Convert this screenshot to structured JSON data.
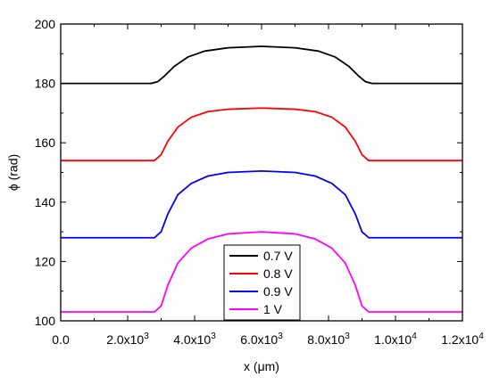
{
  "chart_data": {
    "type": "line",
    "title": "",
    "xlabel": "x (μm)",
    "ylabel": "ϕ (rad)",
    "xlim": [
      0,
      12000
    ],
    "ylim": [
      100,
      200
    ],
    "grid": false,
    "legend_position": "bottom-center",
    "x_ticks": [
      {
        "value": 0,
        "base": "0.0",
        "exp": ""
      },
      {
        "value": 2000,
        "base": "2.0x10",
        "exp": "3"
      },
      {
        "value": 4000,
        "base": "4.0x10",
        "exp": "3"
      },
      {
        "value": 6000,
        "base": "6.0x10",
        "exp": "3"
      },
      {
        "value": 8000,
        "base": "8.0x10",
        "exp": "3"
      },
      {
        "value": 10000,
        "base": "1.0x10",
        "exp": "4"
      },
      {
        "value": 12000,
        "base": "1.2x10",
        "exp": "4"
      }
    ],
    "y_ticks": [
      100,
      120,
      140,
      160,
      180,
      200
    ],
    "series": [
      {
        "name": "0.7 V",
        "color": "#000000",
        "x": [
          0,
          2700,
          2900,
          3100,
          3400,
          3800,
          4300,
          5000,
          6000,
          7000,
          7700,
          8200,
          8600,
          8900,
          9100,
          9300,
          12000
        ],
        "y": [
          180,
          180,
          180.6,
          182.5,
          185.8,
          188.9,
          190.9,
          192.0,
          192.5,
          192.0,
          190.9,
          188.9,
          185.8,
          182.5,
          180.6,
          180,
          180
        ]
      },
      {
        "name": "0.8 V",
        "color": "#ff0000",
        "x": [
          0,
          2800,
          3000,
          3200,
          3500,
          3900,
          4400,
          5000,
          6000,
          7000,
          7600,
          8100,
          8500,
          8800,
          9000,
          9200,
          12000
        ],
        "y": [
          154,
          154,
          156,
          160.5,
          165.3,
          168.6,
          170.5,
          171.3,
          171.7,
          171.3,
          170.5,
          168.6,
          165.3,
          160.5,
          156,
          154,
          154
        ]
      },
      {
        "name": "0.9 V",
        "color": "#0000ff",
        "x": [
          0,
          2800,
          3000,
          3200,
          3500,
          3900,
          4400,
          5000,
          6000,
          7000,
          7600,
          8100,
          8500,
          8800,
          9000,
          9200,
          12000
        ],
        "y": [
          128,
          128,
          130,
          136,
          142.5,
          146.3,
          148.8,
          150,
          150.5,
          150,
          148.8,
          146.3,
          142.5,
          136,
          130,
          128,
          128
        ]
      },
      {
        "name": "1 V",
        "color": "#ff00ff",
        "x": [
          0,
          2800,
          3000,
          3200,
          3500,
          3900,
          4400,
          5000,
          6000,
          7000,
          7600,
          8100,
          8500,
          8800,
          9000,
          9200,
          12000
        ],
        "y": [
          103,
          103,
          105,
          112,
          119.5,
          124.5,
          127.6,
          129.3,
          130,
          129.3,
          127.6,
          124.5,
          119.5,
          112,
          105,
          103,
          103
        ]
      }
    ]
  }
}
